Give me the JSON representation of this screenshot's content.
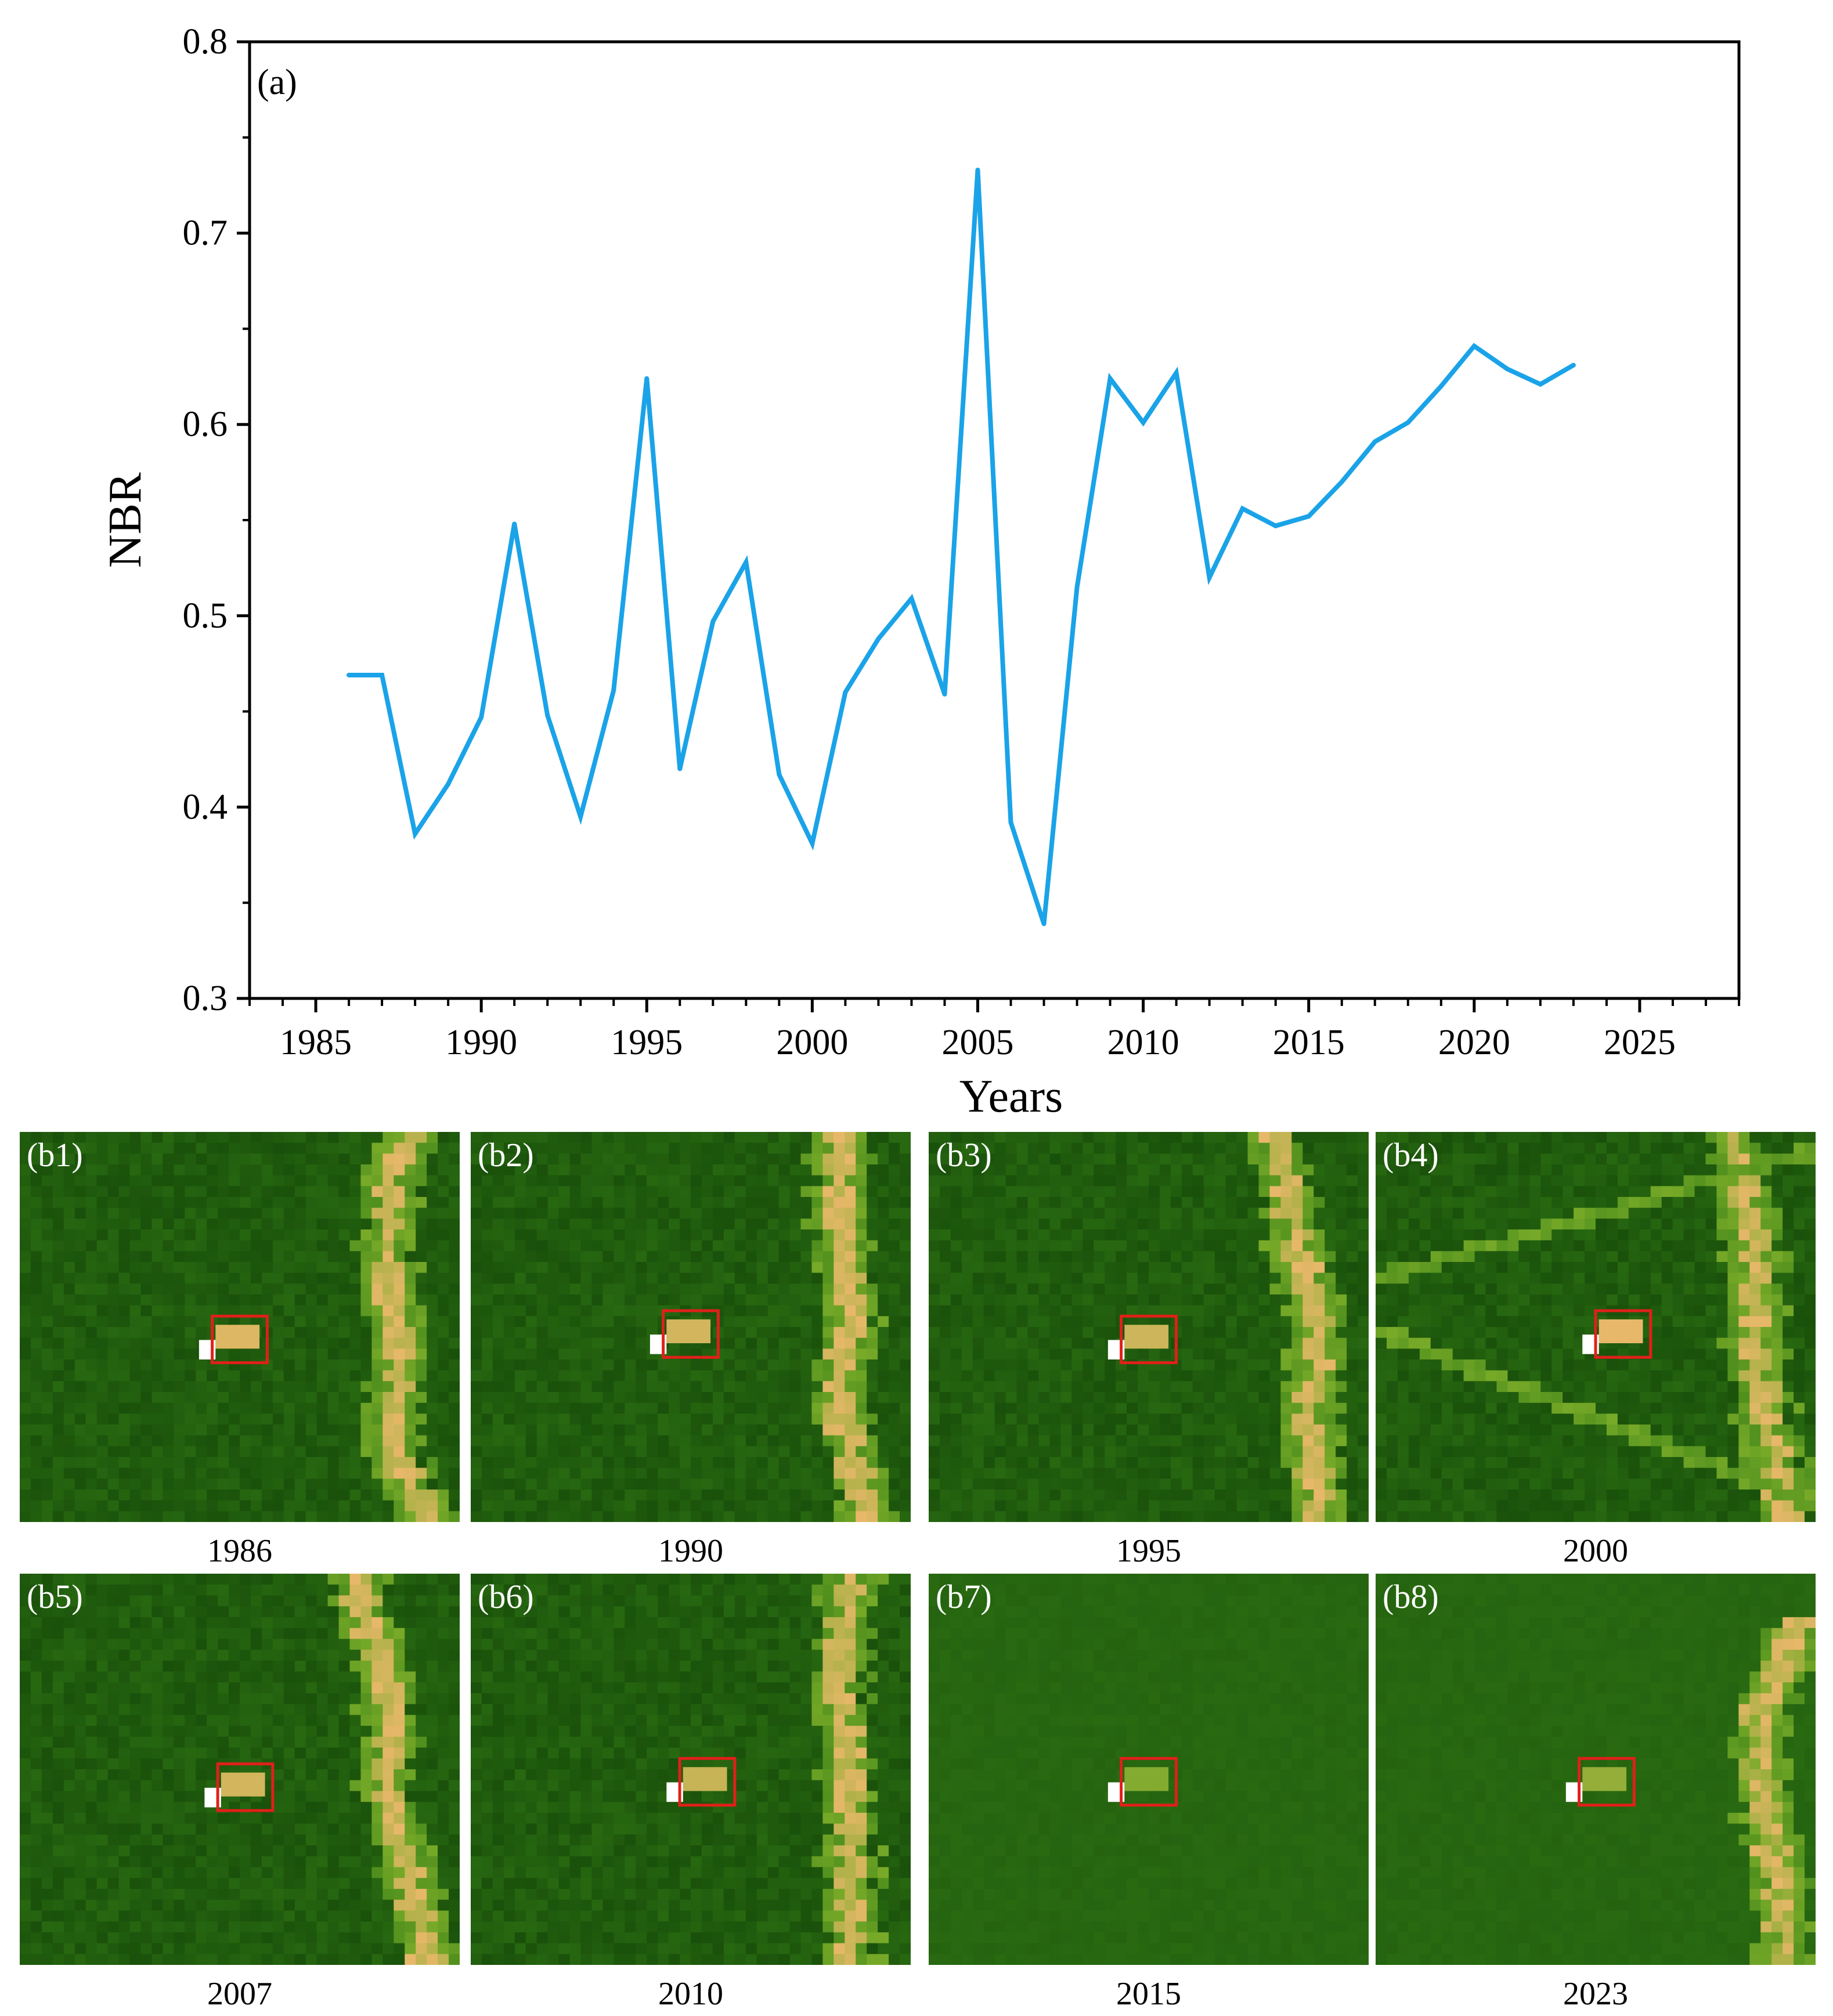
{
  "chart_data": {
    "type": "line",
    "panel_label": "(a)",
    "xlabel": "Years",
    "ylabel": "NBR",
    "xlim": [
      1983,
      2028
    ],
    "ylim": [
      0.3,
      0.8
    ],
    "x_ticks": [
      1985,
      1990,
      1995,
      2000,
      2005,
      2010,
      2015,
      2020,
      2025
    ],
    "y_ticks": [
      0.3,
      0.4,
      0.5,
      0.6,
      0.7,
      0.8
    ],
    "y_tick_labels": [
      "0.3",
      "0.4",
      "0.5",
      "0.6",
      "0.7",
      "0.8"
    ],
    "series": [
      {
        "name": "NBR",
        "color": "#1aa3e8",
        "x": [
          1986,
          1987,
          1988,
          1989,
          1990,
          1991,
          1992,
          1993,
          1994,
          1995,
          1996,
          1997,
          1998,
          1999,
          2000,
          2001,
          2002,
          2003,
          2004,
          2005,
          2006,
          2007,
          2008,
          2009,
          2010,
          2011,
          2012,
          2013,
          2014,
          2015,
          2016,
          2017,
          2018,
          2019,
          2020,
          2021,
          2022,
          2023
        ],
        "y": [
          0.469,
          0.469,
          0.386,
          0.412,
          0.447,
          0.548,
          0.448,
          0.395,
          0.461,
          0.624,
          0.42,
          0.497,
          0.528,
          0.417,
          0.381,
          0.46,
          0.488,
          0.509,
          0.459,
          0.733,
          0.392,
          0.339,
          0.515,
          0.624,
          0.601,
          0.627,
          0.52,
          0.556,
          0.547,
          0.552,
          0.57,
          0.591,
          0.601,
          0.62,
          0.641,
          0.629,
          0.621,
          0.631
        ]
      }
    ]
  },
  "tiles": [
    {
      "tag": "(b1)",
      "year": "1986"
    },
    {
      "tag": "(b2)",
      "year": "1990"
    },
    {
      "tag": "(b3)",
      "year": "1995"
    },
    {
      "tag": "(b4)",
      "year": "2000"
    },
    {
      "tag": "(b5)",
      "year": "2007"
    },
    {
      "tag": "(b6)",
      "year": "2010"
    },
    {
      "tag": "(b7)",
      "year": "2015"
    },
    {
      "tag": "(b8)",
      "year": "2023"
    }
  ],
  "colors": {
    "line": "#1aa3e8",
    "axis": "#000000",
    "highlight_box": "#e0201a",
    "vegetation_dark": "#1f5a0c",
    "vegetation_mid": "#2f7d12",
    "disturbance": "#e8b86a",
    "bright_pixel": "#ffffff"
  }
}
